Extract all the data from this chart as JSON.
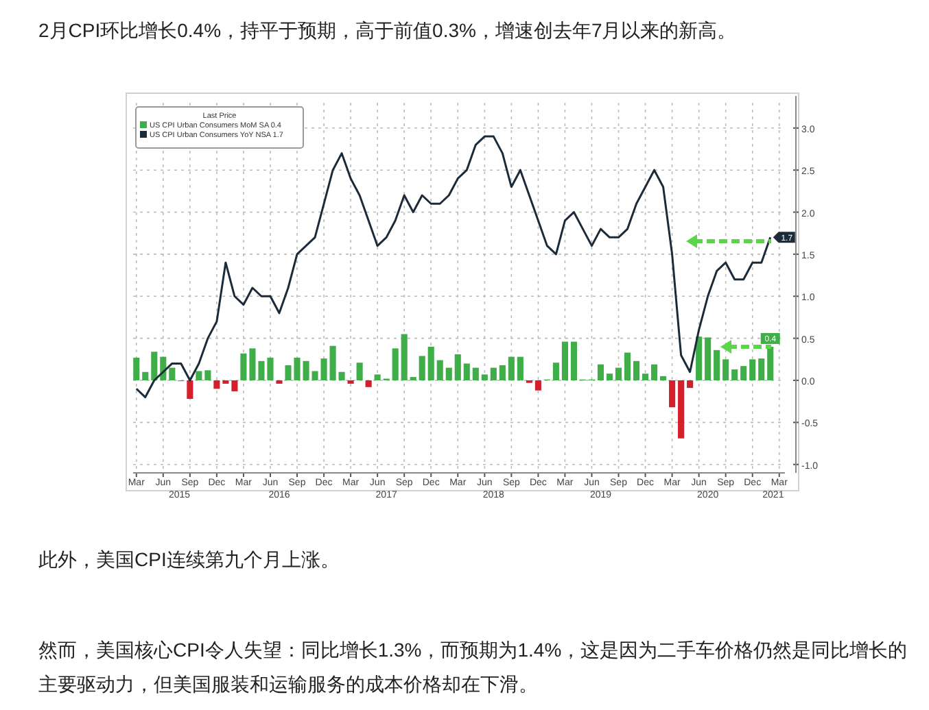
{
  "chart_data": {
    "type": "bar",
    "title": "2月CPI环比增长0.4%，持平于预期，高于前值0.3%，增速创去年7月以来的新高。",
    "annotations": [
      "此外，美国CPI连续第九个月上涨。",
      "然而，美国核心CPI令人失望：同比增长1.3%，而预期为1.4%，这是因为二手车价格仍然是同比增长的主要驱动力，但美国服装和运输服务的成本价格却在下滑。",
      "2015",
      "2016",
      "2017",
      "2018",
      "2019",
      "2020",
      "2021"
    ],
    "legend_title": "Last Price",
    "legend": "top left",
    "grid": true,
    "x": [
      "2015-03",
      "2015-04",
      "2015-05",
      "2015-06",
      "2015-07",
      "2015-08",
      "2015-09",
      "2015-10",
      "2015-11",
      "2015-12",
      "2016-01",
      "2016-02",
      "2016-03",
      "2016-04",
      "2016-05",
      "2016-06",
      "2016-07",
      "2016-08",
      "2016-09",
      "2016-10",
      "2016-11",
      "2016-12",
      "2017-01",
      "2017-02",
      "2017-03",
      "2017-04",
      "2017-05",
      "2017-06",
      "2017-07",
      "2017-08",
      "2017-09",
      "2017-10",
      "2017-11",
      "2017-12",
      "2018-01",
      "2018-02",
      "2018-03",
      "2018-04",
      "2018-05",
      "2018-06",
      "2018-07",
      "2018-08",
      "2018-09",
      "2018-10",
      "2018-11",
      "2018-12",
      "2019-01",
      "2019-02",
      "2019-03",
      "2019-04",
      "2019-05",
      "2019-06",
      "2019-07",
      "2019-08",
      "2019-09",
      "2019-10",
      "2019-11",
      "2019-12",
      "2020-01",
      "2020-02",
      "2020-03",
      "2020-04",
      "2020-05",
      "2020-06",
      "2020-07",
      "2020-08",
      "2020-09",
      "2020-10",
      "2020-11",
      "2020-12",
      "2021-01",
      "2021-02"
    ],
    "xlim": [
      "2015-02-20",
      "2021-03-20"
    ],
    "xticks": [
      {
        "value": "2015-03",
        "label": "Mar"
      },
      {
        "value": "2015-06",
        "label": "Jun"
      },
      {
        "value": "2015-09",
        "label": "Sep"
      },
      {
        "value": "2015-12",
        "label": "Dec"
      },
      {
        "value": "2016-03",
        "label": "Mar"
      },
      {
        "value": "2016-06",
        "label": "Jun"
      },
      {
        "value": "2016-09",
        "label": "Sep"
      },
      {
        "value": "2016-12",
        "label": "Dec"
      },
      {
        "value": "2017-03",
        "label": "Mar"
      },
      {
        "value": "2017-06",
        "label": "Jun"
      },
      {
        "value": "2017-09",
        "label": "Sep"
      },
      {
        "value": "2017-12",
        "label": "Dec"
      },
      {
        "value": "2018-03",
        "label": "Mar"
      },
      {
        "value": "2018-06",
        "label": "Jun"
      },
      {
        "value": "2018-09",
        "label": "Sep"
      },
      {
        "value": "2018-12",
        "label": "Dec"
      },
      {
        "value": "2019-03",
        "label": "Mar"
      },
      {
        "value": "2019-06",
        "label": "Jun"
      },
      {
        "value": "2019-09",
        "label": "Sep"
      },
      {
        "value": "2019-12",
        "label": "Dec"
      },
      {
        "value": "2020-03",
        "label": "Mar"
      },
      {
        "value": "2020-06",
        "label": "Jun"
      },
      {
        "value": "2020-09",
        "label": "Sep"
      },
      {
        "value": "2020-12",
        "label": "Dec"
      },
      {
        "value": "2021-03",
        "label": "Mar"
      }
    ],
    "ylim": [
      -1.1,
      3.3
    ],
    "yticks": [
      {
        "value": 3,
        "label": "3.0"
      },
      {
        "value": 2.5,
        "label": "2.5"
      },
      {
        "value": 2,
        "label": "2.0"
      },
      {
        "value": 1.5,
        "label": "1.5"
      },
      {
        "value": 1,
        "label": "1.0"
      },
      {
        "value": 0.5,
        "label": "0.5"
      },
      {
        "value": 0,
        "label": "0.0"
      },
      {
        "value": -0.5,
        "label": "-0.5"
      },
      {
        "value": -1,
        "label": "-1.0"
      }
    ],
    "series": [
      {
        "name": "US CPI Urban Consumers MoM SA 0.4",
        "color": "#3fae49",
        "values": [
          0.27,
          0.1,
          0.34,
          0.28,
          0.15,
          0.0,
          -0.22,
          0.11,
          0.12,
          -0.1,
          -0.04,
          -0.13,
          0.32,
          0.38,
          0.23,
          0.27,
          -0.04,
          0.18,
          0.27,
          0.23,
          0.11,
          0.26,
          0.41,
          0.1,
          -0.04,
          0.21,
          -0.08,
          0.07,
          0.02,
          0.38,
          0.55,
          0.04,
          0.29,
          0.4,
          0.24,
          0.15,
          0.31,
          0.2,
          0.15,
          0.07,
          0.15,
          0.18,
          0.28,
          0.28,
          -0.03,
          -0.12,
          0.01,
          0.21,
          0.46,
          0.46,
          0.01,
          0.01,
          0.19,
          0.08,
          0.15,
          0.33,
          0.23,
          0.08,
          0.19,
          0.05,
          -0.32,
          -0.69,
          -0.09,
          0.52,
          0.51,
          0.36,
          0.25,
          0.13,
          0.17,
          0.25,
          0.26,
          0.4
        ],
        "colors": [
          "#3fae49",
          "#3fae49",
          "#3fae49",
          "#3fae49",
          "#3fae49",
          "#3fae49",
          "#d3202a",
          "#3fae49",
          "#3fae49",
          "#d3202a",
          "#d3202a",
          "#d3202a",
          "#3fae49",
          "#3fae49",
          "#3fae49",
          "#3fae49",
          "#d3202a",
          "#3fae49",
          "#3fae49",
          "#3fae49",
          "#3fae49",
          "#3fae49",
          "#3fae49",
          "#3fae49",
          "#d3202a",
          "#3fae49",
          "#d3202a",
          "#3fae49",
          "#3fae49",
          "#3fae49",
          "#3fae49",
          "#3fae49",
          "#3fae49",
          "#3fae49",
          "#3fae49",
          "#3fae49",
          "#3fae49",
          "#3fae49",
          "#3fae49",
          "#3fae49",
          "#3fae49",
          "#3fae49",
          "#3fae49",
          "#3fae49",
          "#d3202a",
          "#d3202a",
          "#3fae49",
          "#3fae49",
          "#3fae49",
          "#3fae49",
          "#3fae49",
          "#3fae49",
          "#3fae49",
          "#3fae49",
          "#3fae49",
          "#3fae49",
          "#3fae49",
          "#3fae49",
          "#3fae49",
          "#3fae49",
          "#d3202a",
          "#d3202a",
          "#d3202a",
          "#3fae49",
          "#3fae49",
          "#3fae49",
          "#3fae49",
          "#3fae49",
          "#3fae49",
          "#3fae49",
          "#3fae49",
          "#3fae49"
        ],
        "value_labels": [
          null,
          null,
          null,
          null,
          null,
          null,
          null,
          null,
          null,
          null,
          null,
          null,
          null,
          null,
          null,
          null,
          null,
          null,
          null,
          null,
          null,
          null,
          null,
          null,
          null,
          null,
          null,
          null,
          null,
          null,
          null,
          null,
          null,
          null,
          null,
          null,
          null,
          null,
          null,
          null,
          null,
          null,
          null,
          null,
          null,
          null,
          null,
          null,
          null,
          null,
          null,
          null,
          null,
          null,
          null,
          null,
          null,
          null,
          null,
          null,
          null,
          null,
          null,
          null,
          null,
          null,
          null,
          null,
          null,
          null,
          null,
          "0.4"
        ]
      },
      {
        "name": "US CPI Urban Consumers YoY NSA 1.7",
        "type": "line",
        "color": "#1c2b3a",
        "marker": "none",
        "line_style": "solid",
        "values": [
          -0.1,
          -0.2,
          0.0,
          0.1,
          0.2,
          0.2,
          0.0,
          0.2,
          0.5,
          0.7,
          1.4,
          1.0,
          0.9,
          1.1,
          1.0,
          1.0,
          0.8,
          1.1,
          1.5,
          1.6,
          1.7,
          2.1,
          2.5,
          2.7,
          2.4,
          2.2,
          1.9,
          1.6,
          1.7,
          1.9,
          2.2,
          2.0,
          2.2,
          2.1,
          2.1,
          2.2,
          2.4,
          2.5,
          2.8,
          2.9,
          2.9,
          2.7,
          2.3,
          2.5,
          2.2,
          1.9,
          1.6,
          1.5,
          1.9,
          2.0,
          1.8,
          1.6,
          1.8,
          1.7,
          1.7,
          1.8,
          2.1,
          2.3,
          2.5,
          2.3,
          1.5,
          0.3,
          0.1,
          0.6,
          1.0,
          1.3,
          1.4,
          1.2,
          1.2,
          1.4,
          1.4,
          1.7
        ],
        "value_labels": [
          null,
          null,
          null,
          null,
          null,
          null,
          null,
          null,
          null,
          null,
          null,
          null,
          null,
          null,
          null,
          null,
          null,
          null,
          null,
          null,
          null,
          null,
          null,
          null,
          null,
          null,
          null,
          null,
          null,
          null,
          null,
          null,
          null,
          null,
          null,
          null,
          null,
          null,
          null,
          null,
          null,
          null,
          null,
          null,
          null,
          null,
          null,
          null,
          null,
          null,
          null,
          null,
          null,
          null,
          null,
          null,
          null,
          null,
          null,
          null,
          null,
          null,
          null,
          null,
          null,
          null,
          null,
          null,
          null,
          null,
          null,
          "1.7"
        ]
      }
    ]
  }
}
